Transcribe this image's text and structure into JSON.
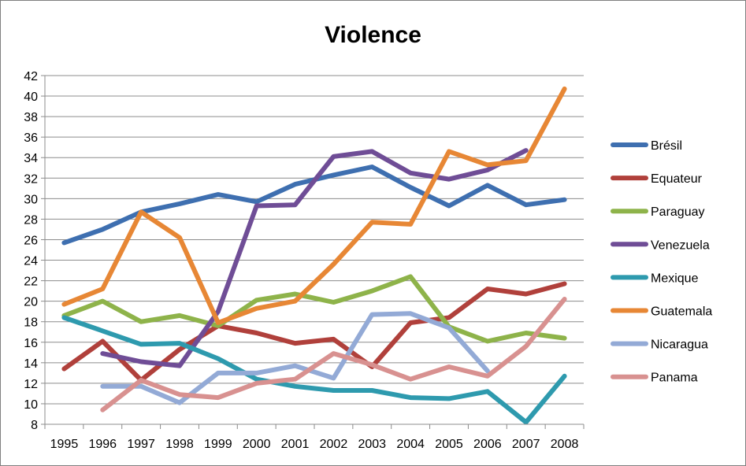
{
  "chart_data": {
    "type": "line",
    "title": "Violence",
    "xlabel": "",
    "ylabel": "",
    "ylim": [
      8,
      42
    ],
    "ytick_step": 2,
    "grid": true,
    "legend": "right",
    "categories": [
      "1995",
      "1996",
      "1997",
      "1998",
      "1999",
      "2000",
      "2001",
      "2002",
      "2003",
      "2004",
      "2005",
      "2006",
      "2007",
      "2008"
    ],
    "series": [
      {
        "name": "Brésil",
        "color": "#3e6fb0",
        "values": [
          25.7,
          27.0,
          28.7,
          29.5,
          30.4,
          29.7,
          31.4,
          32.3,
          33.1,
          31.1,
          29.3,
          31.3,
          29.4,
          29.9
        ]
      },
      {
        "name": "Equateur",
        "color": "#b0403b",
        "values": [
          13.4,
          16.1,
          12.3,
          15.3,
          17.6,
          16.9,
          15.9,
          16.3,
          13.6,
          17.9,
          18.4,
          21.2,
          20.7,
          21.7
        ]
      },
      {
        "name": "Paraguay",
        "color": "#8eb34a",
        "values": [
          18.6,
          20.0,
          18.0,
          18.6,
          17.6,
          20.1,
          20.7,
          19.9,
          21.0,
          22.4,
          17.5,
          16.1,
          16.9,
          16.4
        ]
      },
      {
        "name": "Venezuela",
        "color": "#6f4d96",
        "values": [
          null,
          14.9,
          14.1,
          13.7,
          19.0,
          29.3,
          29.4,
          34.1,
          34.6,
          32.5,
          31.9,
          32.8,
          34.7,
          null
        ]
      },
      {
        "name": "Mexique",
        "color": "#2e9aae",
        "values": [
          18.4,
          17.1,
          15.8,
          15.9,
          14.4,
          12.4,
          11.7,
          11.3,
          11.3,
          10.6,
          10.5,
          11.2,
          8.2,
          12.7
        ]
      },
      {
        "name": "Guatemala",
        "color": "#e78735",
        "values": [
          19.7,
          21.2,
          28.7,
          26.2,
          17.9,
          19.3,
          20.0,
          23.6,
          27.7,
          27.5,
          34.6,
          33.3,
          33.7,
          40.7
        ]
      },
      {
        "name": "Nicaragua",
        "color": "#93aad6",
        "values": [
          null,
          11.7,
          11.7,
          10.1,
          13.0,
          13.0,
          13.7,
          12.5,
          18.7,
          18.8,
          17.4,
          13.2,
          null,
          null
        ]
      },
      {
        "name": "Panama",
        "color": "#d89190",
        "values": [
          null,
          9.4,
          12.3,
          10.9,
          10.6,
          12.0,
          12.4,
          14.9,
          13.8,
          12.4,
          13.6,
          12.7,
          15.6,
          20.2
        ]
      }
    ]
  }
}
